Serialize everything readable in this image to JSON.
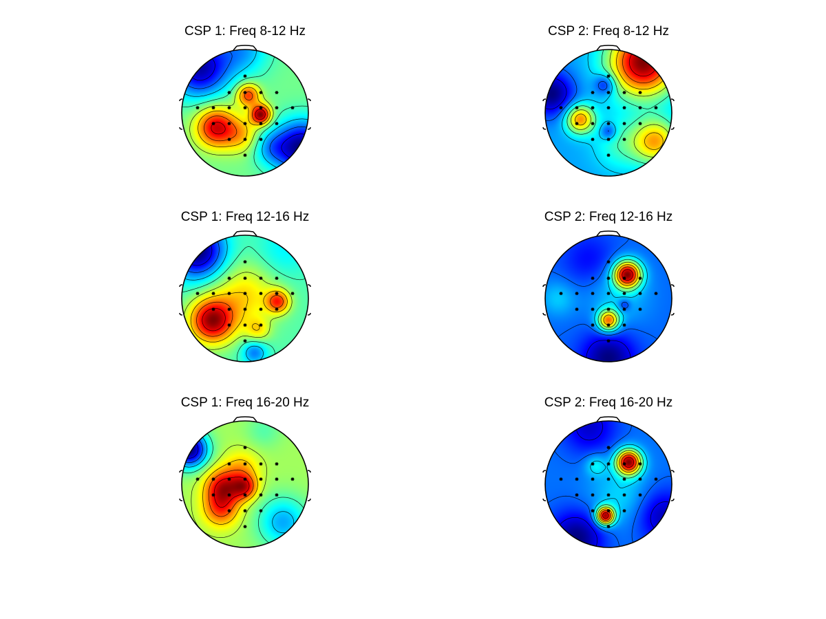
{
  "figure": {
    "panels": [
      {
        "title": "CSP 1: Freq 8-12 Hz",
        "blobs": [
          {
            "u": -0.46,
            "v": 0.23,
            "a": 1.05,
            "s": 0.22
          },
          {
            "u": 0.25,
            "v": 0.03,
            "a": 1.25,
            "s": 0.11
          },
          {
            "u": 0.05,
            "v": -0.28,
            "a": 0.85,
            "s": 0.13
          },
          {
            "u": -0.05,
            "v": 0.35,
            "a": 0.45,
            "s": 0.2
          },
          {
            "u": -0.72,
            "v": -0.7,
            "a": -1.1,
            "s": 0.32
          },
          {
            "u": 0.9,
            "v": 0.55,
            "a": -1.2,
            "s": 0.3
          },
          {
            "u": -0.05,
            "v": -1.0,
            "a": -0.5,
            "s": 0.3
          },
          {
            "u": 0.4,
            "v": 0.55,
            "a": -0.4,
            "s": 0.2
          }
        ]
      },
      {
        "title": "CSP 2: Freq 8-12 Hz",
        "blobs": [
          {
            "u": 0.55,
            "v": -0.8,
            "a": 1.5,
            "s": 0.38
          },
          {
            "u": -0.45,
            "v": 0.1,
            "a": 0.95,
            "s": 0.16
          },
          {
            "u": 0.75,
            "v": 0.45,
            "a": 0.85,
            "s": 0.25
          },
          {
            "u": 0.2,
            "v": 0.5,
            "a": 0.3,
            "s": 0.3
          },
          {
            "u": -0.9,
            "v": -0.3,
            "a": -0.6,
            "s": 0.25
          },
          {
            "u": 0.0,
            "v": 0.3,
            "a": -0.35,
            "s": 0.09
          },
          {
            "u": -0.05,
            "v": -0.45,
            "a": -0.45,
            "s": 0.12
          }
        ]
      },
      {
        "title": "CSP 1: Freq 12-16 Hz",
        "blobs": [
          {
            "u": -0.52,
            "v": 0.35,
            "a": 1.4,
            "s": 0.25
          },
          {
            "u": 0.52,
            "v": 0.05,
            "a": 0.95,
            "s": 0.13
          },
          {
            "u": 0.0,
            "v": -0.05,
            "a": 0.55,
            "s": 0.35
          },
          {
            "u": 0.2,
            "v": 0.5,
            "a": 0.45,
            "s": 0.14
          },
          {
            "u": -0.75,
            "v": -0.75,
            "a": -1.3,
            "s": 0.3
          },
          {
            "u": 0.6,
            "v": -0.75,
            "a": -0.25,
            "s": 0.3
          },
          {
            "u": 0.15,
            "v": 0.85,
            "a": -0.6,
            "s": 0.14
          }
        ]
      },
      {
        "title": "CSP 2: Freq 12-16 Hz",
        "blobs": [
          {
            "u": 0.3,
            "v": -0.38,
            "a": 1.45,
            "s": 0.15
          },
          {
            "u": 0.0,
            "v": 0.35,
            "a": 1.05,
            "s": 0.12
          },
          {
            "u": 0.15,
            "v": -0.05,
            "a": 0.2,
            "s": 0.35
          },
          {
            "u": -0.8,
            "v": 0.0,
            "a": 0.2,
            "s": 0.2
          },
          {
            "u": 0.0,
            "v": 0.95,
            "a": -0.45,
            "s": 0.3
          },
          {
            "u": -0.3,
            "v": -0.6,
            "a": -0.2,
            "s": 0.3
          },
          {
            "u": 0.25,
            "v": 0.1,
            "a": -0.25,
            "s": 0.07
          }
        ]
      },
      {
        "title": "CSP 1: Freq 16-20 Hz",
        "blobs": [
          {
            "u": -0.35,
            "v": 0.05,
            "a": 1.2,
            "s": 0.2
          },
          {
            "u": 0.0,
            "v": 0.05,
            "a": 1.0,
            "s": 0.14
          },
          {
            "u": -0.38,
            "v": 0.4,
            "a": 0.85,
            "s": 0.2
          },
          {
            "u": -0.05,
            "v": -0.25,
            "a": 0.5,
            "s": 0.2
          },
          {
            "u": -0.88,
            "v": -0.55,
            "a": -1.8,
            "s": 0.2
          },
          {
            "u": 0.6,
            "v": 0.6,
            "a": -0.8,
            "s": 0.28
          },
          {
            "u": 0.3,
            "v": -0.85,
            "a": -0.25,
            "s": 0.2
          }
        ]
      },
      {
        "title": "CSP 2: Freq 16-20 Hz",
        "blobs": [
          {
            "u": 0.32,
            "v": -0.35,
            "a": 1.4,
            "s": 0.14
          },
          {
            "u": -0.05,
            "v": 0.5,
            "a": 1.35,
            "s": 0.1
          },
          {
            "u": -0.2,
            "v": -0.3,
            "a": 0.25,
            "s": 0.12
          },
          {
            "u": 0.2,
            "v": 0.2,
            "a": 0.2,
            "s": 0.35
          },
          {
            "u": -0.3,
            "v": -0.9,
            "a": -0.3,
            "s": 0.3
          },
          {
            "u": -0.5,
            "v": 0.85,
            "a": -0.45,
            "s": 0.3
          },
          {
            "u": 0.85,
            "v": 0.5,
            "a": -0.35,
            "s": 0.3
          }
        ]
      }
    ],
    "electrodes": [
      [
        0,
        -0.58
      ],
      [
        -0.25,
        -0.32
      ],
      [
        0,
        -0.32
      ],
      [
        0.25,
        -0.32
      ],
      [
        0.5,
        -0.32
      ],
      [
        -0.75,
        -0.08
      ],
      [
        -0.5,
        -0.08
      ],
      [
        -0.25,
        -0.08
      ],
      [
        0,
        -0.08
      ],
      [
        0.25,
        -0.08
      ],
      [
        0.5,
        -0.08
      ],
      [
        0.75,
        -0.08
      ],
      [
        -0.5,
        0.17
      ],
      [
        -0.25,
        0.17
      ],
      [
        0,
        0.17
      ],
      [
        0.25,
        0.17
      ],
      [
        0.5,
        0.17
      ],
      [
        -0.25,
        0.42
      ],
      [
        0,
        0.42
      ],
      [
        0.25,
        0.42
      ],
      [
        0,
        0.67
      ]
    ],
    "colormap": "jet",
    "contour_levels": 9
  }
}
